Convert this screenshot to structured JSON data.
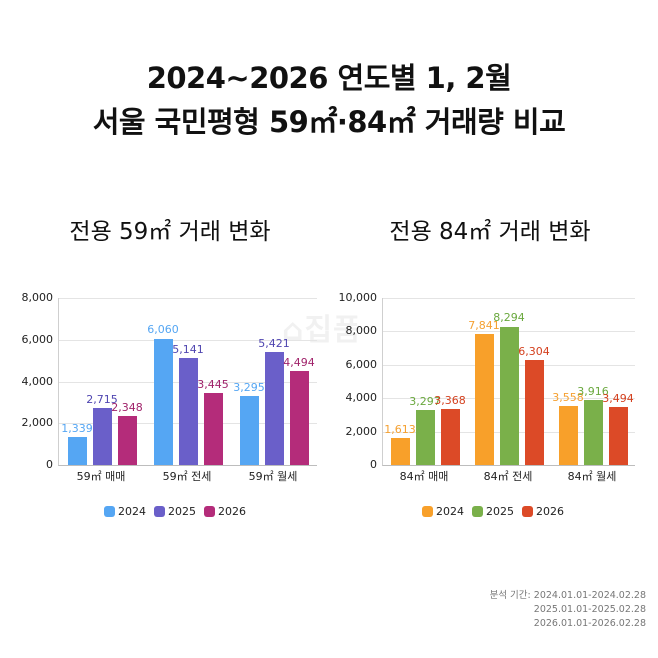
{
  "title": {
    "line1": "2024~2026 연도별 1, 2월",
    "line2": "서울 국민평형 59㎡·84㎡ 거래량 비교"
  },
  "watermark": "⌂집품",
  "footnote": {
    "label": "분석 기간:",
    "periods": [
      "2024.01.01-2024.02.28",
      "2025.01.01-2025.02.28",
      "2026.01.01-2026.02.28"
    ]
  },
  "chart_data": [
    {
      "type": "bar",
      "title": "전용 59㎡ 거래 변화",
      "categories": [
        "59㎡ 매매",
        "59㎡ 전세",
        "59㎡ 월세"
      ],
      "series": [
        {
          "name": "2024",
          "color": "#55a6f3",
          "label_color": "#55a6f3",
          "values": [
            1339,
            6060,
            3295
          ]
        },
        {
          "name": "2025",
          "color": "#6a5fc9",
          "label_color": "#4f45b0",
          "values": [
            2715,
            5141,
            5421
          ]
        },
        {
          "name": "2026",
          "color": "#b42c7a",
          "label_color": "#a0226a",
          "values": [
            2348,
            3445,
            4494
          ]
        }
      ],
      "value_labels": [
        [
          "1,339",
          "6,060",
          "3,295"
        ],
        [
          "2,715",
          "5,141",
          "5,421"
        ],
        [
          "2,348",
          "3,445",
          "4,494"
        ]
      ],
      "yticks": [
        "0",
        "2,000",
        "4,000",
        "6,000",
        "8,000"
      ],
      "ylim": [
        0,
        8000
      ],
      "grid": true,
      "legend_position": "bottom",
      "xlabel": "",
      "ylabel": ""
    },
    {
      "type": "bar",
      "title": "전용 84㎡ 거래 변화",
      "categories": [
        "84㎡ 매매",
        "84㎡ 전세",
        "84㎡ 월세"
      ],
      "series": [
        {
          "name": "2024",
          "color": "#f8a02a",
          "label_color": "#f5a030",
          "values": [
            1613,
            7841,
            3558
          ]
        },
        {
          "name": "2025",
          "color": "#7ab04a",
          "label_color": "#6aa83e",
          "values": [
            3297,
            8294,
            3916
          ]
        },
        {
          "name": "2026",
          "color": "#dc4a27",
          "label_color": "#d4401e",
          "values": [
            3368,
            6304,
            3494
          ]
        }
      ],
      "value_labels": [
        [
          "1,613",
          "7,841",
          "3,558"
        ],
        [
          "3,297",
          "8,294",
          "3,916"
        ],
        [
          "3,368",
          "6,304",
          "3,494"
        ]
      ],
      "yticks": [
        "0",
        "2,000",
        "4,000",
        "6,000",
        "8,000",
        "10,000"
      ],
      "ylim": [
        0,
        10000
      ],
      "grid": true,
      "legend_position": "bottom",
      "xlabel": "",
      "ylabel": ""
    }
  ]
}
